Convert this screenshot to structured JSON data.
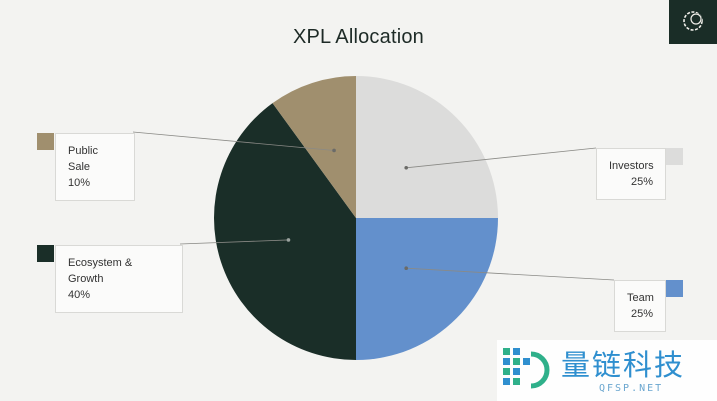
{
  "chart_data": {
    "type": "pie",
    "title": "XPL Allocation",
    "start_angle_deg": 0,
    "direction": "clockwise",
    "slices": [
      {
        "label": "Investors",
        "value": 25,
        "value_label": "25%",
        "color": "#dcdcdb"
      },
      {
        "label": "Team",
        "value": 25,
        "value_label": "25%",
        "color": "#6390cc"
      },
      {
        "label": "Ecosystem & Growth",
        "value": 40,
        "value_label": "40%",
        "color": "#1a2e28"
      },
      {
        "label": "Public Sale",
        "value": 10,
        "value_label": "10%",
        "color": "#a08f6e"
      }
    ]
  },
  "brand": {
    "icon": "brand-logo-icon",
    "color": "#1a2d27"
  },
  "watermark": {
    "text": "量链科技",
    "subtext": "QFSP.NET"
  }
}
